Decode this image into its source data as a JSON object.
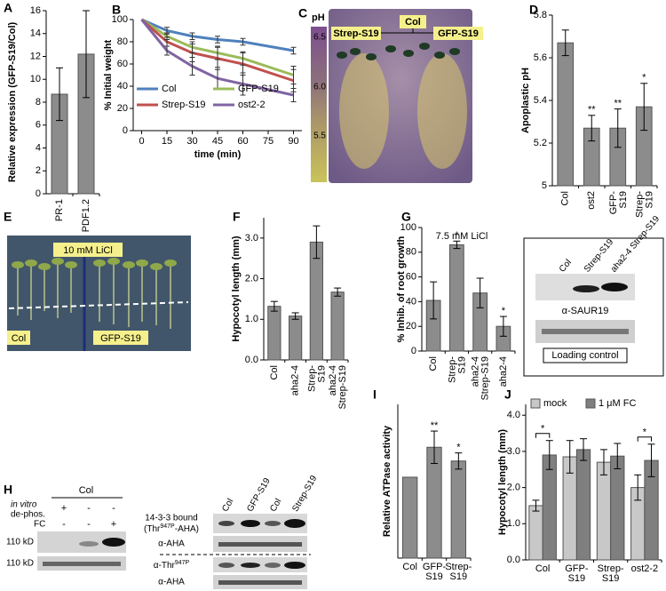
{
  "chart_data": [
    {
      "panel": "A",
      "type": "bar",
      "ylabel": "Relative expression (GFP-S19/Col)",
      "categories": [
        "PR-1",
        "PDF1.2"
      ],
      "values": [
        8.7,
        12.2
      ],
      "errors": [
        2.3,
        3.8
      ],
      "color": "#8c8c8c",
      "ylim": [
        0,
        16
      ],
      "yticks": [
        0,
        2,
        4,
        6,
        8,
        10,
        12,
        14,
        16
      ]
    },
    {
      "panel": "B",
      "type": "line",
      "ylabel": "% Initial weight",
      "xlabel": "time (min)",
      "x": [
        0,
        15,
        30,
        45,
        60,
        90
      ],
      "xlim": [
        -5,
        95
      ],
      "xticks": [
        0,
        15,
        30,
        45,
        60,
        75,
        90
      ],
      "ylim": [
        0,
        100
      ],
      "yticks": [
        0,
        20,
        40,
        60,
        80,
        100
      ],
      "legend": "lower left",
      "series": [
        {
          "name": "Col",
          "color": "#4f81bd",
          "values": [
            100,
            90,
            85,
            82,
            80,
            72
          ],
          "errors": [
            0,
            3,
            3,
            3,
            3,
            3
          ]
        },
        {
          "name": "GFP-S19",
          "color": "#9bbb59",
          "values": [
            100,
            85,
            75,
            70,
            65,
            50
          ],
          "errors": [
            0,
            3,
            5,
            6,
            6,
            8
          ]
        },
        {
          "name": "Strep-S19",
          "color": "#c0504d",
          "values": [
            100,
            80,
            70,
            65,
            60,
            45
          ],
          "errors": [
            0,
            4,
            8,
            10,
            10,
            10
          ]
        },
        {
          "name": "ost2-2",
          "color": "#8064a2",
          "values": [
            100,
            72,
            58,
            47,
            42,
            32
          ],
          "errors": [
            0,
            4,
            8,
            10,
            10,
            6
          ]
        }
      ]
    },
    {
      "panel": "D",
      "type": "bar",
      "ylabel": "Apoplastic pH",
      "categories": [
        "Col",
        "ost2",
        "GFP-S19",
        "Strep-S19"
      ],
      "values": [
        5.67,
        5.27,
        5.27,
        5.37
      ],
      "errors": [
        0.06,
        0.06,
        0.09,
        0.11
      ],
      "color": "#8c8c8c",
      "ylim": [
        5,
        5.8
      ],
      "yticks": [
        5,
        5.2,
        5.4,
        5.6,
        5.8
      ],
      "annotations": [
        {
          "category": "ost2",
          "text": "**"
        },
        {
          "category": "GFP-S19",
          "text": "**"
        },
        {
          "category": "Strep-S19",
          "text": "*"
        }
      ]
    },
    {
      "panel": "F",
      "type": "bar",
      "ylabel": "Hypocotyl length (mm)",
      "categories": [
        "Col",
        "aha2-4",
        "Strep-S19",
        "aha2-4 Strep-S19"
      ],
      "values": [
        1.32,
        1.08,
        2.9,
        1.67
      ],
      "errors": [
        0.12,
        0.08,
        0.4,
        0.1
      ],
      "color": "#8c8c8c",
      "ylim": [
        0,
        3.5
      ],
      "yticks": [
        {
          "value": 0,
          "label": "0.0"
        },
        {
          "value": 1,
          "label": "1.0"
        },
        {
          "value": 2,
          "label": "2.0"
        },
        {
          "value": 3,
          "label": "3.0"
        }
      ]
    },
    {
      "panel": "G",
      "type": "bar",
      "subtitle": "7.5 mM LiCl",
      "ylabel": "% Inhib. of root growth",
      "categories": [
        "Col",
        "Strep-S19",
        "aha2-4 Strep-S19",
        "aha2-4"
      ],
      "values": [
        41,
        86,
        47,
        20
      ],
      "errors": [
        15,
        3,
        12,
        8
      ],
      "color": "#8c8c8c",
      "ylim": [
        0,
        100
      ],
      "yticks": [
        0,
        20,
        40,
        60,
        80,
        100
      ],
      "annotations": [
        {
          "category": "Strep-S19",
          "text": "*"
        },
        {
          "category": "aha2-4",
          "text": "*"
        }
      ]
    },
    {
      "panel": "I",
      "type": "bar",
      "ylabel": "Relative ATPase activity",
      "categories": [
        "Col",
        "GFP-S19",
        "Strep-S19"
      ],
      "values": [
        100,
        137,
        120
      ],
      "errors": [
        0,
        20,
        10
      ],
      "color": "#8c8c8c",
      "ylim": [
        0,
        190
      ],
      "annotations": [
        {
          "category": "GFP-S19",
          "text": "**"
        },
        {
          "category": "Strep-S19",
          "text": "*"
        }
      ]
    },
    {
      "panel": "J",
      "type": "bar",
      "ylabel": "Hypocotyl length (mm)",
      "categories": [
        "Col",
        "GFP-S19",
        "Strep-S19",
        "ost2-2"
      ],
      "ylim": [
        0,
        4.3
      ],
      "yticks": [
        {
          "value": 0,
          "label": "0.0"
        },
        {
          "value": 1,
          "label": "1.0"
        },
        {
          "value": 2,
          "label": "2.0"
        },
        {
          "value": 3,
          "label": "3.0"
        },
        {
          "value": 4,
          "label": "4.0"
        }
      ],
      "series": [
        {
          "name": "mock",
          "color": "#c8c8c8",
          "values": [
            1.5,
            2.85,
            2.7,
            2.0
          ],
          "errors": [
            0.15,
            0.45,
            0.35,
            0.35
          ]
        },
        {
          "name": "1 μM FC",
          "color": "#7f7f7f",
          "values": [
            2.9,
            3.05,
            2.87,
            2.75
          ],
          "errors": [
            0.4,
            0.3,
            0.35,
            0.45
          ]
        }
      ],
      "annotations": [
        {
          "category": "Col",
          "text": "*"
        },
        {
          "category": "ost2-2",
          "text": "*"
        }
      ]
    }
  ],
  "panels": {
    "C": {
      "letter": "C",
      "ph_label": "pH",
      "ph_values": [
        "6.5",
        "6.0",
        "5.5"
      ],
      "labels": [
        "Strep-S19",
        "Col",
        "GFP-S19"
      ]
    },
    "E": {
      "letter": "E",
      "treatment": "10 mM LiCl",
      "labels": [
        "Col",
        "GFP-S19"
      ]
    },
    "G_inset": {
      "lanes": [
        "Col",
        "Strep-S19",
        "aha2-4 Strep-S19"
      ],
      "antibody": "α-SAUR19",
      "control": "Loading control"
    },
    "H": {
      "letter": "H",
      "group": "Col",
      "dephos_label": [
        "in vitro",
        "de-phos."
      ],
      "dephos_signs": [
        "+",
        "-",
        "-"
      ],
      "fc_label": "FC",
      "fc_signs": [
        "-",
        "-",
        "+"
      ],
      "size_markers": [
        "110 kD",
        "110 kD"
      ],
      "bound_label": "14-3-3 bound",
      "bound_sub": [
        "(Thr",
        "947P",
        "-AHA)"
      ],
      "aha_label": "α-AHA",
      "thr_label": [
        "α-Thr",
        "947P"
      ],
      "aha_label_2": "α-AHA",
      "right_lanes": [
        "Col",
        "GFP-S19",
        "Col",
        "Strep-S19"
      ]
    }
  }
}
